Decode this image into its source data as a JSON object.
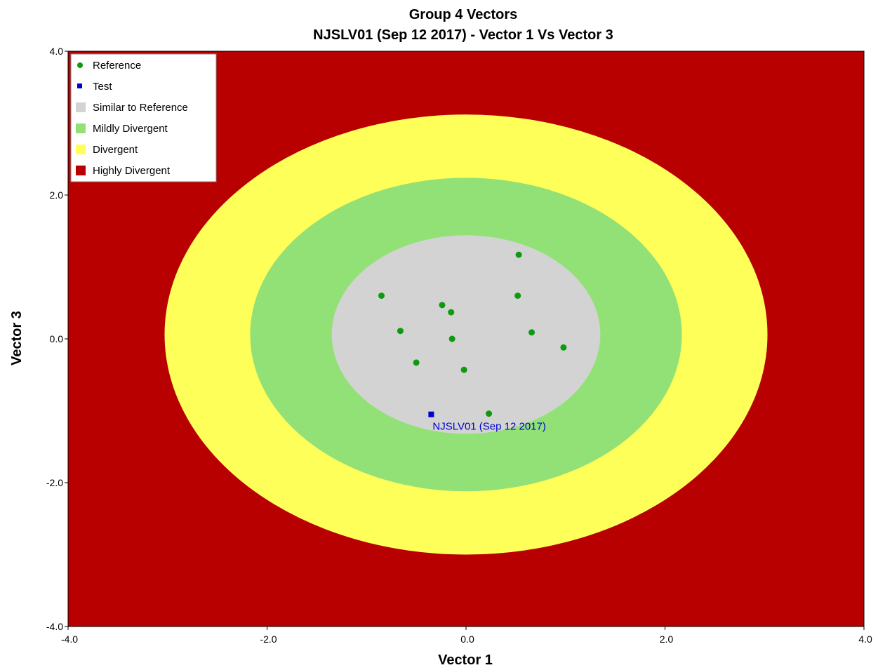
{
  "chart_data": {
    "type": "scatter",
    "title": "Group 4 Vectors",
    "subtitle": "NJSLV01 (Sep 12 2017) - Vector 1 Vs Vector 3",
    "xlabel": "Vector 1",
    "ylabel": "Vector 3",
    "xlim": [
      -4.0,
      4.0
    ],
    "ylim": [
      -4.0,
      4.0
    ],
    "xticks": [
      "-4.0",
      "-2.0",
      "0.0",
      "2.0",
      "4.0"
    ],
    "yticks": [
      "4.0",
      "2.0",
      "0.0",
      "-2.0",
      "-4.0"
    ],
    "grid": false,
    "legend_position": "top-left",
    "colors": {
      "background": "#b80000",
      "divergent": "#ffff5a",
      "mildly_divergent": "#92e176",
      "similar": "#d3d3d3",
      "reference": "#0e9a0e",
      "test": "#0000d0"
    },
    "zones": [
      {
        "name": "Highly Divergent",
        "color": "#b80000"
      },
      {
        "name": "Divergent",
        "color": "#ffff5a",
        "center": [
          0.0,
          0.06
        ],
        "rx": 3.03,
        "ry": 3.06
      },
      {
        "name": "Mildly Divergent",
        "color": "#92e176",
        "center": [
          0.0,
          0.06
        ],
        "rx": 2.17,
        "ry": 2.18
      },
      {
        "name": "Similar to Reference",
        "color": "#d3d3d3",
        "center": [
          0.0,
          0.06
        ],
        "rx": 1.35,
        "ry": 1.38
      }
    ],
    "series": [
      {
        "name": "Reference",
        "marker": "circle",
        "color": "#0e9a0e",
        "points": [
          [
            -0.85,
            0.6
          ],
          [
            -0.66,
            0.11
          ],
          [
            -0.5,
            -0.33
          ],
          [
            -0.24,
            0.47
          ],
          [
            -0.15,
            0.37
          ],
          [
            -0.14,
            0.0
          ],
          [
            -0.02,
            -0.43
          ],
          [
            0.23,
            -1.04
          ],
          [
            0.52,
            0.6
          ],
          [
            0.53,
            1.17
          ],
          [
            0.66,
            0.09
          ],
          [
            0.98,
            -0.12
          ]
        ]
      },
      {
        "name": "Test",
        "marker": "square",
        "color": "#0000d0",
        "points": [
          [
            -0.35,
            -1.05
          ]
        ],
        "labels": [
          "NJSLV01 (Sep 12 2017)"
        ]
      }
    ],
    "legend": [
      {
        "label": "Reference",
        "color": "#0e9a0e",
        "shape": "dot"
      },
      {
        "label": "Test",
        "color": "#0000d0",
        "shape": "small-square"
      },
      {
        "label": "Similar to Reference",
        "color": "#d3d3d3",
        "shape": "square"
      },
      {
        "label": "Mildly Divergent",
        "color": "#92e176",
        "shape": "square"
      },
      {
        "label": "Divergent",
        "color": "#ffff5a",
        "shape": "square"
      },
      {
        "label": "Highly Divergent",
        "color": "#b80000",
        "shape": "square"
      }
    ]
  }
}
